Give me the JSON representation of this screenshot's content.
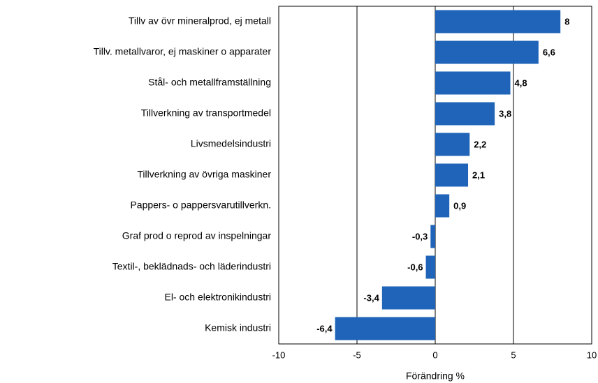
{
  "chart_data": {
    "type": "barh",
    "categories": [
      "Tillv av övr mineralprod, ej metall",
      "Tillv. metallvaror, ej maskiner o apparater",
      "Stål- och metallframställning",
      "Tillverkning av transportmedel",
      "Livsmedelsindustri",
      "Tillverkning av övriga maskiner",
      "Pappers- o pappersvarutillverkn.",
      "Graf prod o reprod av inspelningar",
      "Textil-, beklädnads- och läderindustri",
      "El- och elektronikindustri",
      "Kemisk industri"
    ],
    "values": [
      8,
      6.6,
      4.8,
      3.8,
      2.2,
      2.1,
      0.9,
      -0.3,
      -0.6,
      -3.4,
      -6.4
    ],
    "value_labels": [
      "8",
      "6,6",
      "4,8",
      "3,8",
      "2,2",
      "2,1",
      "0,9",
      "-0,3",
      "-0,6",
      "-3,4",
      "-6,4"
    ],
    "color": "#1f64b8",
    "xlim": [
      -10,
      10
    ],
    "xticks": [
      -10,
      -5,
      0,
      5,
      10
    ],
    "grid": true,
    "x_label": "Förändring %"
  }
}
